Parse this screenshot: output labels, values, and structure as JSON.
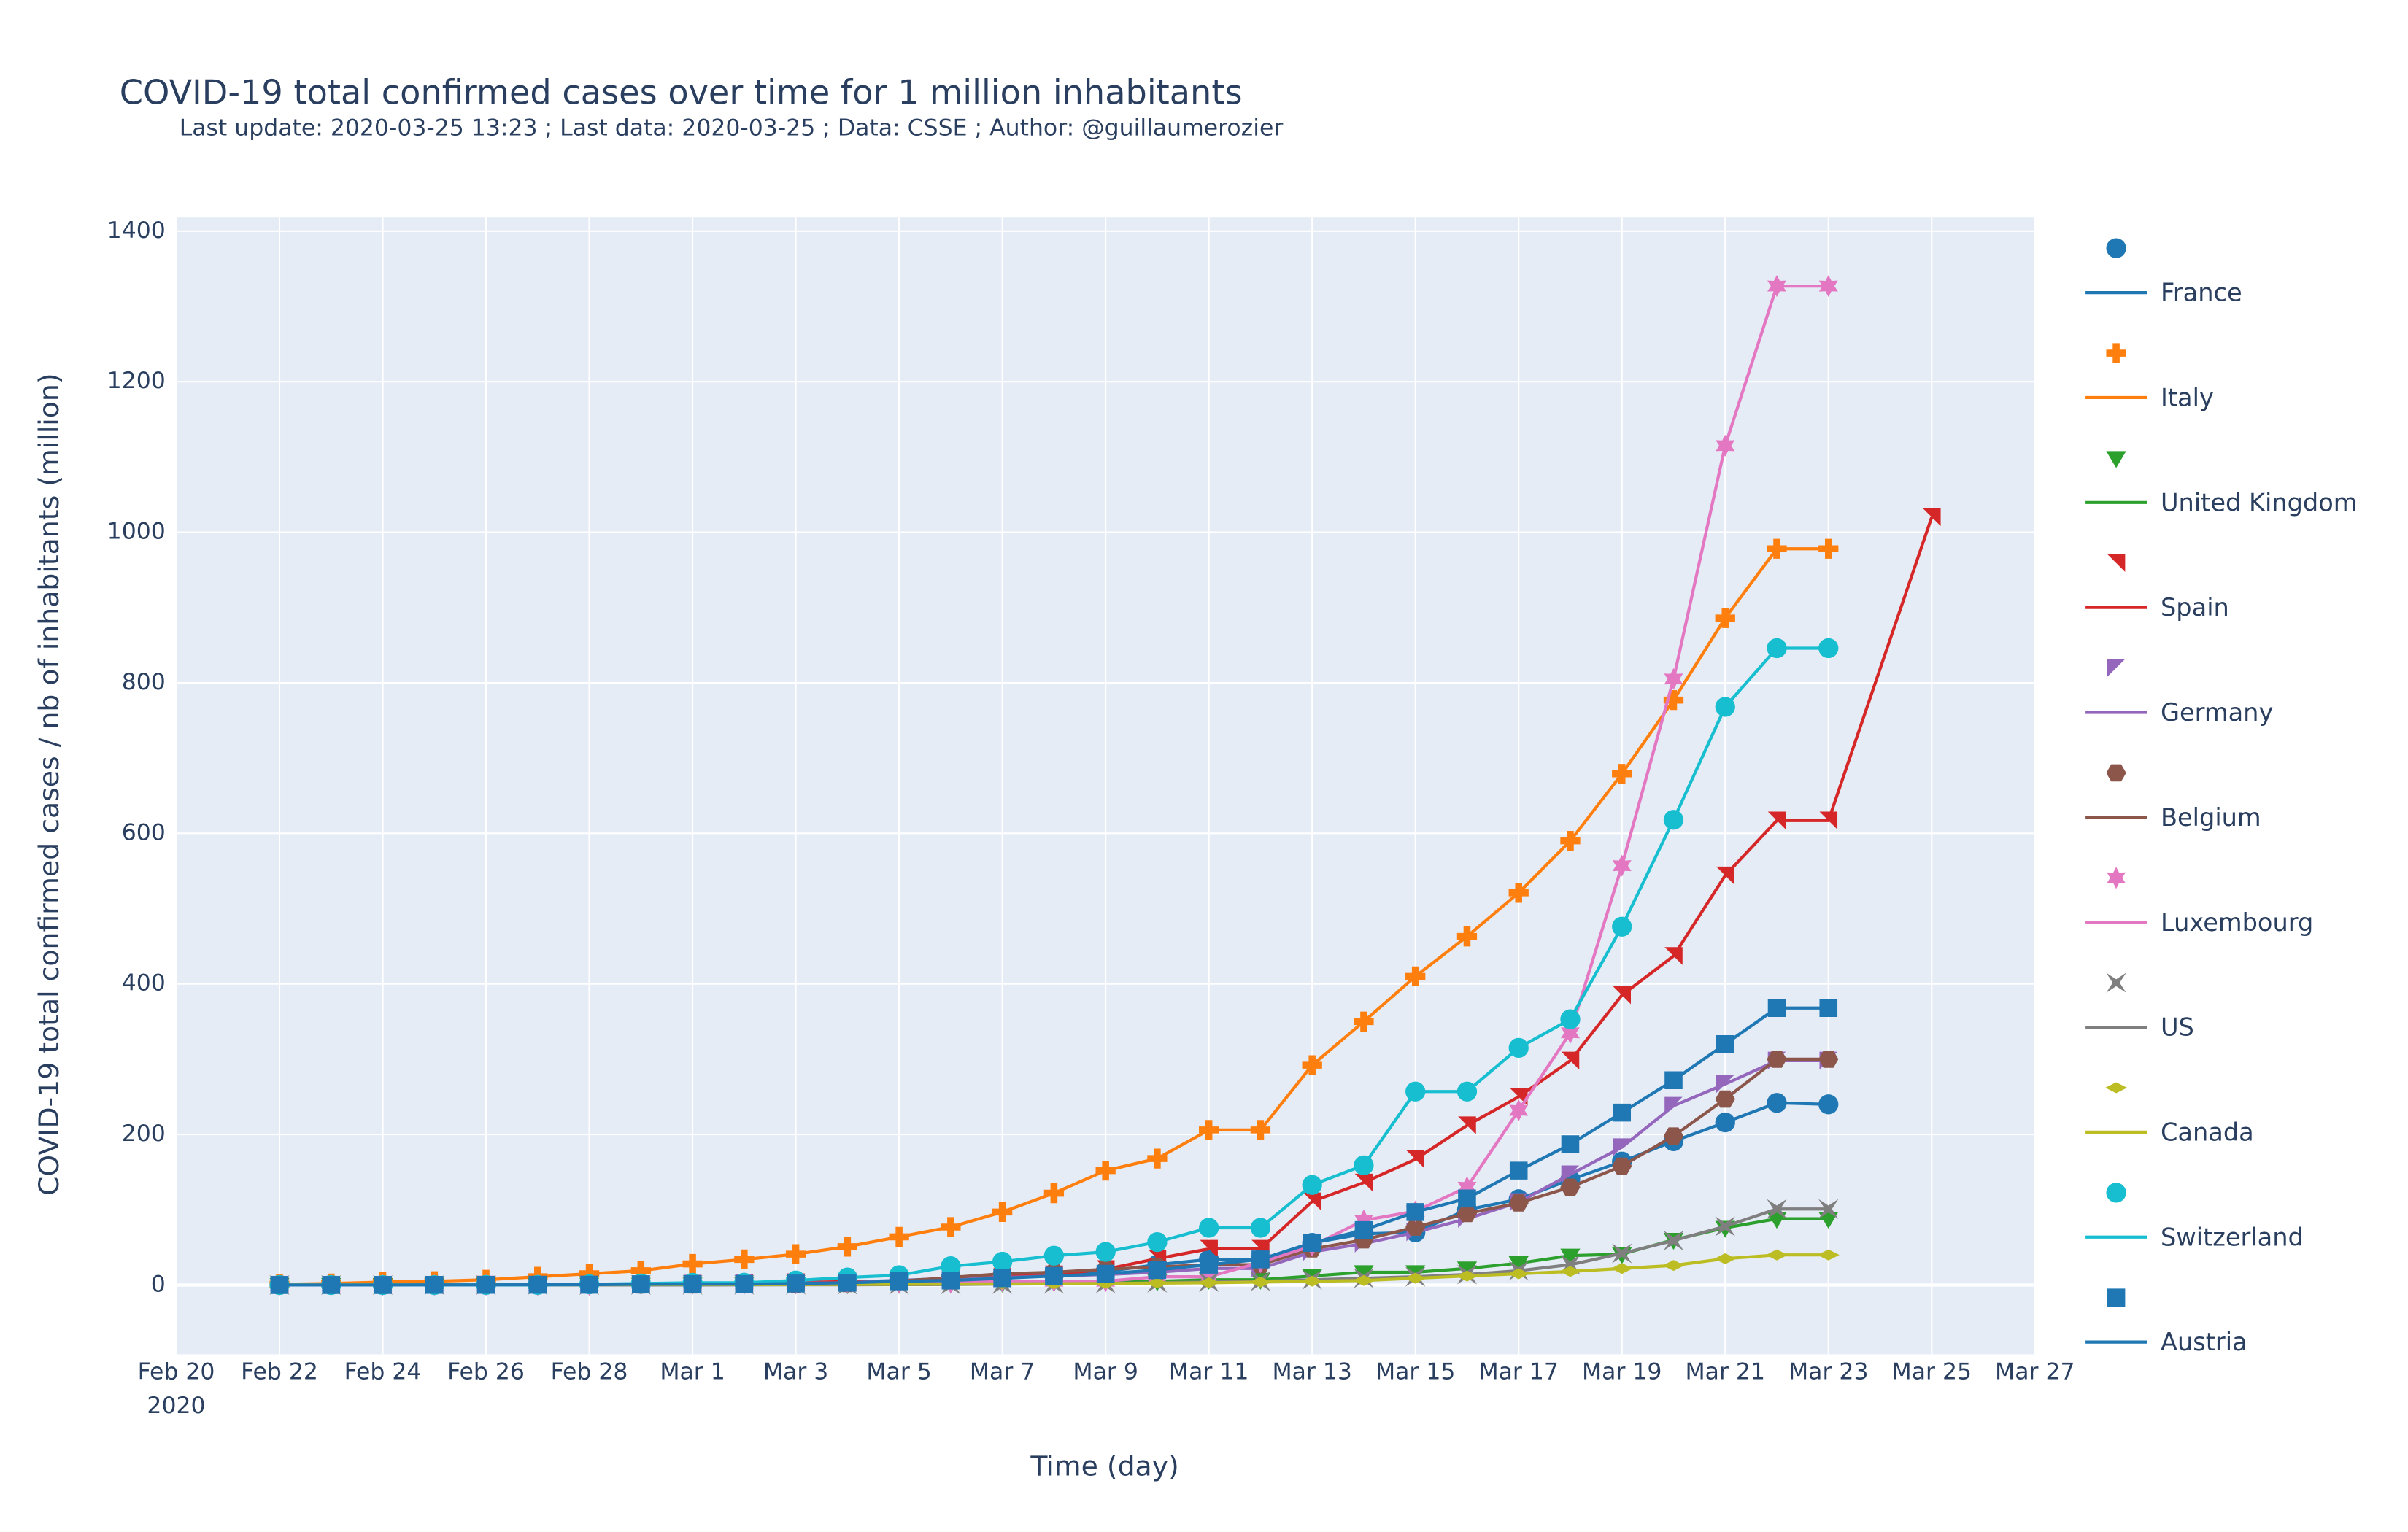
{
  "chart_data": {
    "type": "line",
    "title": "COVID-19 total confirmed cases over time for 1 million inhabitants",
    "subtitle": "Last update: 2020-03-25 13:23 ; Last data: 2020-03-25 ; Data: CSSE ; Author: @guillaumerozier",
    "x_label": "Time (day)",
    "y_label": "COVID-19 total confirmed cases / nb of inhabitants (million)",
    "x_axis_year": "2020",
    "x": [
      "2020-02-22",
      "2020-02-23",
      "2020-02-24",
      "2020-02-25",
      "2020-02-26",
      "2020-02-27",
      "2020-02-28",
      "2020-02-29",
      "2020-03-01",
      "2020-03-02",
      "2020-03-03",
      "2020-03-04",
      "2020-03-05",
      "2020-03-06",
      "2020-03-07",
      "2020-03-08",
      "2020-03-09",
      "2020-03-10",
      "2020-03-11",
      "2020-03-12",
      "2020-03-13",
      "2020-03-14",
      "2020-03-15",
      "2020-03-16",
      "2020-03-17",
      "2020-03-18",
      "2020-03-19",
      "2020-03-20",
      "2020-03-21",
      "2020-03-22",
      "2020-03-23"
    ],
    "xlim": [
      "2020-02-20",
      "2020-03-27"
    ],
    "xticks": [
      {
        "value": "2020-02-20",
        "label": "Feb 20"
      },
      {
        "value": "2020-02-22",
        "label": "Feb 22"
      },
      {
        "value": "2020-02-24",
        "label": "Feb 24"
      },
      {
        "value": "2020-02-26",
        "label": "Feb 26"
      },
      {
        "value": "2020-02-28",
        "label": "Feb 28"
      },
      {
        "value": "2020-03-01",
        "label": "Mar 1"
      },
      {
        "value": "2020-03-03",
        "label": "Mar 3"
      },
      {
        "value": "2020-03-05",
        "label": "Mar 5"
      },
      {
        "value": "2020-03-07",
        "label": "Mar 7"
      },
      {
        "value": "2020-03-09",
        "label": "Mar 9"
      },
      {
        "value": "2020-03-11",
        "label": "Mar 11"
      },
      {
        "value": "2020-03-13",
        "label": "Mar 13"
      },
      {
        "value": "2020-03-15",
        "label": "Mar 15"
      },
      {
        "value": "2020-03-17",
        "label": "Mar 17"
      },
      {
        "value": "2020-03-19",
        "label": "Mar 19"
      },
      {
        "value": "2020-03-21",
        "label": "Mar 21"
      },
      {
        "value": "2020-03-23",
        "label": "Mar 23"
      },
      {
        "value": "2020-03-25",
        "label": "Mar 25"
      },
      {
        "value": "2020-03-27",
        "label": "Mar 27"
      }
    ],
    "ylim": [
      -92,
      1418
    ],
    "yticks": [
      0,
      200,
      400,
      600,
      800,
      1000,
      1200,
      1400
    ],
    "grid": true,
    "legend": "right",
    "series": [
      {
        "name": "France",
        "color": "#1f77b4",
        "marker": "circle",
        "values": [
          0.2,
          0.2,
          0.2,
          0.2,
          0.3,
          0.6,
          0.9,
          1.5,
          2,
          3,
          3,
          4,
          6,
          9,
          11,
          14,
          18,
          27,
          34,
          34,
          56,
          68,
          70,
          100,
          114,
          140,
          164,
          191,
          216,
          242,
          240
        ]
      },
      {
        "name": "Italy",
        "color": "#ff7f0e",
        "marker": "cross",
        "values": [
          1,
          2,
          4,
          5,
          7,
          11,
          15,
          19,
          28,
          34,
          41,
          51,
          64,
          77,
          97,
          122,
          152,
          168,
          206,
          206,
          292,
          350,
          410,
          463,
          521,
          590,
          679,
          777,
          886,
          978,
          978
        ]
      },
      {
        "name": "United Kingdom",
        "color": "#2ca02c",
        "marker": "triangle-down",
        "values": [
          0,
          0,
          0,
          0,
          0.2,
          0.2,
          0.3,
          0.3,
          0.5,
          0.6,
          0.8,
          1,
          1.3,
          2,
          3,
          4,
          5,
          5,
          7,
          7,
          12,
          17,
          17,
          22,
          29,
          39,
          41,
          60,
          76,
          88,
          88
        ]
      },
      {
        "name": "Spain",
        "color": "#d62728",
        "marker": "triangle-ne",
        "x": [
          "2020-02-22",
          "2020-02-23",
          "2020-02-24",
          "2020-02-25",
          "2020-02-26",
          "2020-02-27",
          "2020-02-28",
          "2020-02-29",
          "2020-03-01",
          "2020-03-02",
          "2020-03-03",
          "2020-03-04",
          "2020-03-05",
          "2020-03-06",
          "2020-03-07",
          "2020-03-08",
          "2020-03-09",
          "2020-03-10",
          "2020-03-11",
          "2020-03-12",
          "2020-03-13",
          "2020-03-14",
          "2020-03-15",
          "2020-03-16",
          "2020-03-17",
          "2020-03-18",
          "2020-03-19",
          "2020-03-20",
          "2020-03-21",
          "2020-03-22",
          "2020-03-23",
          "2020-03-25"
        ],
        "values": [
          0,
          0,
          0,
          0,
          0.3,
          0.3,
          0.5,
          0.7,
          1.8,
          2.6,
          3.5,
          4.4,
          5.5,
          9,
          11,
          14,
          21,
          35,
          48,
          48,
          111,
          136,
          167,
          212,
          250,
          298,
          385,
          437,
          544,
          617,
          617,
          1020
        ]
      },
      {
        "name": "Germany",
        "color": "#9467bd",
        "marker": "triangle-sw",
        "values": [
          0.2,
          0.2,
          0.2,
          0.2,
          0.3,
          0.3,
          0.6,
          0.8,
          1.6,
          2,
          2.4,
          3,
          6,
          8,
          10,
          12,
          14,
          17,
          22,
          22,
          44,
          55,
          70,
          88,
          110,
          147,
          183,
          238,
          267,
          298,
          298
        ]
      },
      {
        "name": "Belgium",
        "color": "#8c564b",
        "marker": "hexagon",
        "values": [
          0.1,
          0.1,
          0.1,
          0.1,
          0.1,
          0.1,
          0.1,
          0.2,
          0.2,
          0.7,
          1.1,
          2,
          5,
          10,
          15,
          17,
          21,
          24,
          27,
          27,
          48,
          60,
          77,
          95,
          109,
          130,
          158,
          198,
          247,
          300,
          300
        ]
      },
      {
        "name": "Luxembourg",
        "color": "#e377c2",
        "marker": "hexagram",
        "values": [
          0,
          0,
          0,
          0,
          0,
          0,
          0,
          2,
          2,
          2,
          2,
          3,
          3,
          3,
          5,
          5,
          5,
          11,
          11,
          30,
          52,
          86,
          98,
          130,
          232,
          335,
          557,
          805,
          1115,
          1327,
          1327
        ]
      },
      {
        "name": "US",
        "color": "#7f7f7f",
        "marker": "bowtie",
        "values": [
          0,
          0,
          0,
          0,
          0,
          0,
          0,
          0.1,
          0.1,
          0.2,
          0.3,
          0.3,
          0.5,
          0.7,
          1.3,
          1.6,
          2,
          3,
          4,
          5,
          7,
          9,
          11,
          14,
          19,
          27,
          42,
          59,
          78,
          101,
          101
        ]
      },
      {
        "name": "Canada",
        "color": "#bcbd22",
        "marker": "diamond-wide",
        "values": [
          0.2,
          0.2,
          0.2,
          0.3,
          0.3,
          0.3,
          0.4,
          0.5,
          0.5,
          0.6,
          0.8,
          0.9,
          1,
          1.3,
          1.5,
          1.7,
          2,
          2.5,
          3,
          4,
          5,
          6,
          9,
          12,
          15,
          18,
          22,
          26,
          35,
          40,
          40
        ]
      },
      {
        "name": "Switzerland",
        "color": "#17becf",
        "marker": "circle",
        "values": [
          0,
          0,
          0,
          0,
          0.1,
          0.1,
          1,
          2,
          3,
          3,
          6,
          10,
          13,
          25,
          31,
          39,
          44,
          57,
          76,
          76,
          133,
          159,
          257,
          257,
          315,
          353,
          476,
          618,
          768,
          846,
          846
        ]
      },
      {
        "name": "Austria",
        "color": "#1f77b4",
        "marker": "square",
        "values": [
          0,
          0,
          0,
          0.2,
          0.2,
          0.3,
          0.4,
          1,
          1.1,
          1.1,
          2,
          3,
          5,
          6,
          9,
          12,
          15,
          20,
          27,
          34,
          56,
          73,
          97,
          115,
          152,
          187,
          229,
          272,
          320,
          368,
          368
        ]
      }
    ]
  }
}
